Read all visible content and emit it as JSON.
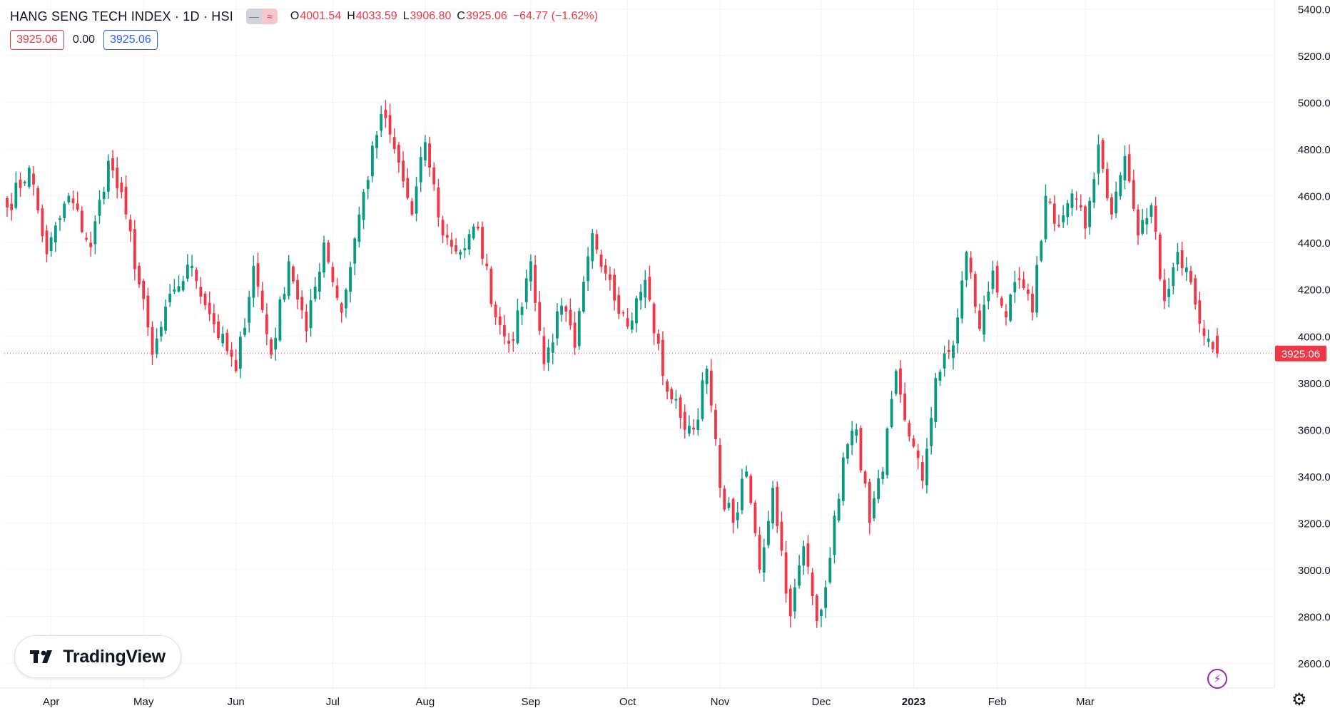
{
  "legend": {
    "symbol": "HANG SENG TECH INDEX · 1D · HSI",
    "pill_left": "—",
    "pill_right": "≈",
    "open_label": "O",
    "open": "4001.54",
    "high_label": "H",
    "high": "4033.59",
    "low_label": "L",
    "low": "3906.80",
    "close_label": "C",
    "close": "3925.06",
    "change": "−64.77 (−1.62%)"
  },
  "info_row": {
    "price_a": "3925.06",
    "spread": "0.00",
    "price_b": "3925.06"
  },
  "branding": {
    "logo_text": "TradingView",
    "logo_icon": "tradingview-logo-icon"
  },
  "controls": {
    "bolt_icon": "lightning-icon",
    "settings_icon": "gear-icon"
  },
  "colors": {
    "up": "#089981",
    "down": "#f23645",
    "grid": "#f0f3fa",
    "axis_text": "#131722"
  },
  "chart_data": {
    "type": "candlestick",
    "title": "HANG SENG TECH INDEX · 1D · HSI",
    "xlabel": "",
    "ylabel": "",
    "ylim": [
      2500,
      5420
    ],
    "y_ticks": [
      2600,
      2800,
      3000,
      3200,
      3400,
      3600,
      3800,
      4000,
      4200,
      4400,
      4600,
      4800,
      5000,
      5200,
      5400
    ],
    "y_tick_labels": [
      "2600.00",
      "2800.00",
      "3000.00",
      "3200.00",
      "3400.00",
      "3600.00",
      "3800.00",
      "4000.00",
      "4200.00",
      "4400.00",
      "4600.00",
      "4800.00",
      "5000.00",
      "5200.00",
      "5400.00"
    ],
    "x_labels": [
      {
        "label": "Apr",
        "index": 10
      },
      {
        "label": "May",
        "index": 31
      },
      {
        "label": "Jun",
        "index": 52
      },
      {
        "label": "Jul",
        "index": 74
      },
      {
        "label": "Aug",
        "index": 95
      },
      {
        "label": "Sep",
        "index": 119
      },
      {
        "label": "Oct",
        "index": 141
      },
      {
        "label": "Nov",
        "index": 162
      },
      {
        "label": "Dec",
        "index": 185
      },
      {
        "label": "2023",
        "index": 206,
        "bold": true
      },
      {
        "label": "Feb",
        "index": 225
      },
      {
        "label": "Mar",
        "index": 245
      }
    ],
    "last_price": 3925.06,
    "last_price_label": "3925.06",
    "grid": true,
    "legend_position": "top-left",
    "keys": [
      4550,
      4720,
      4350,
      4600,
      4380,
      4750,
      4520,
      3920,
      4200,
      4300,
      4050,
      3850,
      4300,
      3920,
      4320,
      4020,
      4400,
      4100,
      4520,
      4950,
      4800,
      4520,
      4830,
      4430,
      4360,
      4460,
      4080,
      3980,
      4320,
      3880,
      4130,
      3950,
      4440,
      4240,
      4040,
      4240,
      3830,
      3650,
      3600,
      3860,
      3350,
      3200,
      3420,
      3000,
      3350,
      2800,
      3100,
      2780,
      3050,
      3480,
      3600,
      3200,
      3420,
      3850,
      3570,
      3380,
      3820,
      3960,
      4360,
      4030,
      4280,
      4080,
      4240,
      4100,
      4600,
      4470,
      4610,
      4460,
      4820,
      4520,
      4770,
      4430,
      4560,
      4150,
      4360,
      4230,
      4000,
      3925.06
    ],
    "segments": [
      5,
      4,
      5,
      5,
      4,
      4,
      6,
      5,
      4,
      5,
      5,
      4,
      4,
      4,
      4,
      4,
      4,
      4,
      5,
      3,
      4,
      3,
      4,
      4,
      4,
      4,
      4,
      4,
      3,
      4,
      3,
      4,
      4,
      4,
      4,
      4,
      4,
      3,
      3,
      3,
      3,
      3,
      3,
      3,
      4,
      3,
      3,
      3,
      3,
      3,
      3,
      3,
      3,
      3,
      3,
      3,
      4,
      3,
      3,
      3,
      3,
      3,
      3,
      3,
      3,
      3,
      3,
      3,
      3,
      3,
      3,
      3,
      3,
      3,
      3,
      3,
      3
    ]
  }
}
